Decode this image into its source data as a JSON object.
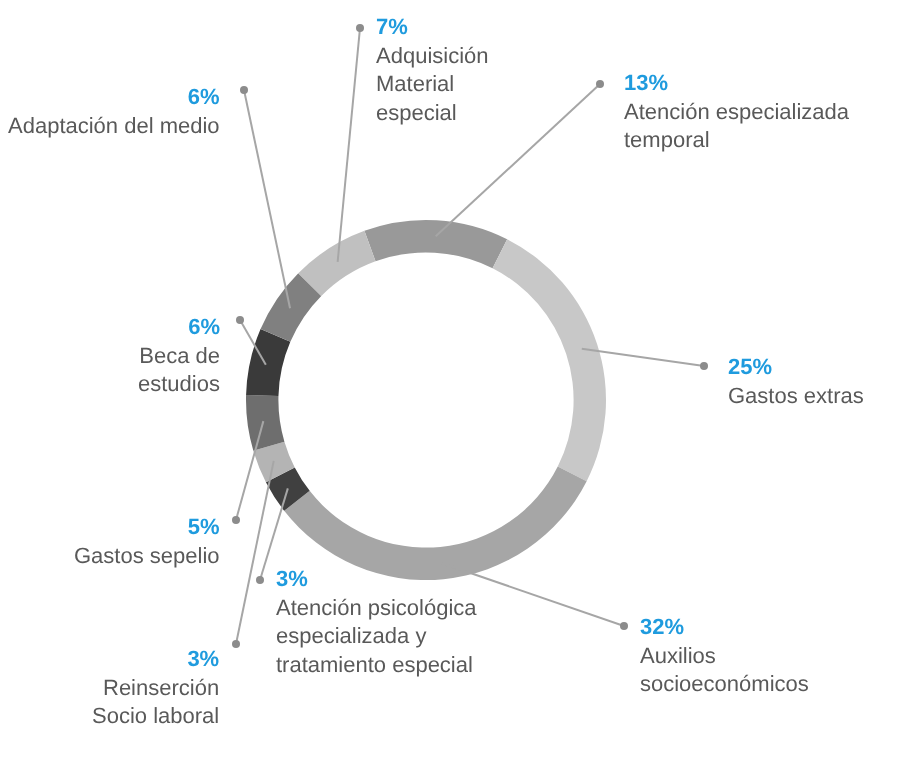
{
  "chart_data": {
    "type": "donut",
    "categories": [
      "Atención especializada temporal",
      "Gastos extras",
      "Auxilios socioeconómicos",
      "Atención psicológica especializada y tratamiento especial",
      "Reinserción Socio laboral",
      "Gastos sepelio",
      "Beca de estudios",
      "Adaptación del medio",
      "Adquisición Material especial"
    ],
    "values": [
      13,
      25,
      32,
      3,
      3,
      5,
      6,
      6,
      7
    ],
    "value_labels": [
      "13%",
      "25%",
      "32%",
      "3%",
      "3%",
      "5%",
      "6%",
      "6%",
      "7%"
    ],
    "colors": [
      "#999999",
      "#c8c8c8",
      "#a6a6a6",
      "#404040",
      "#b4b4b4",
      "#6e6e6e",
      "#3a3a3a",
      "#808080",
      "#c0c0c0"
    ],
    "legend": false
  }
}
